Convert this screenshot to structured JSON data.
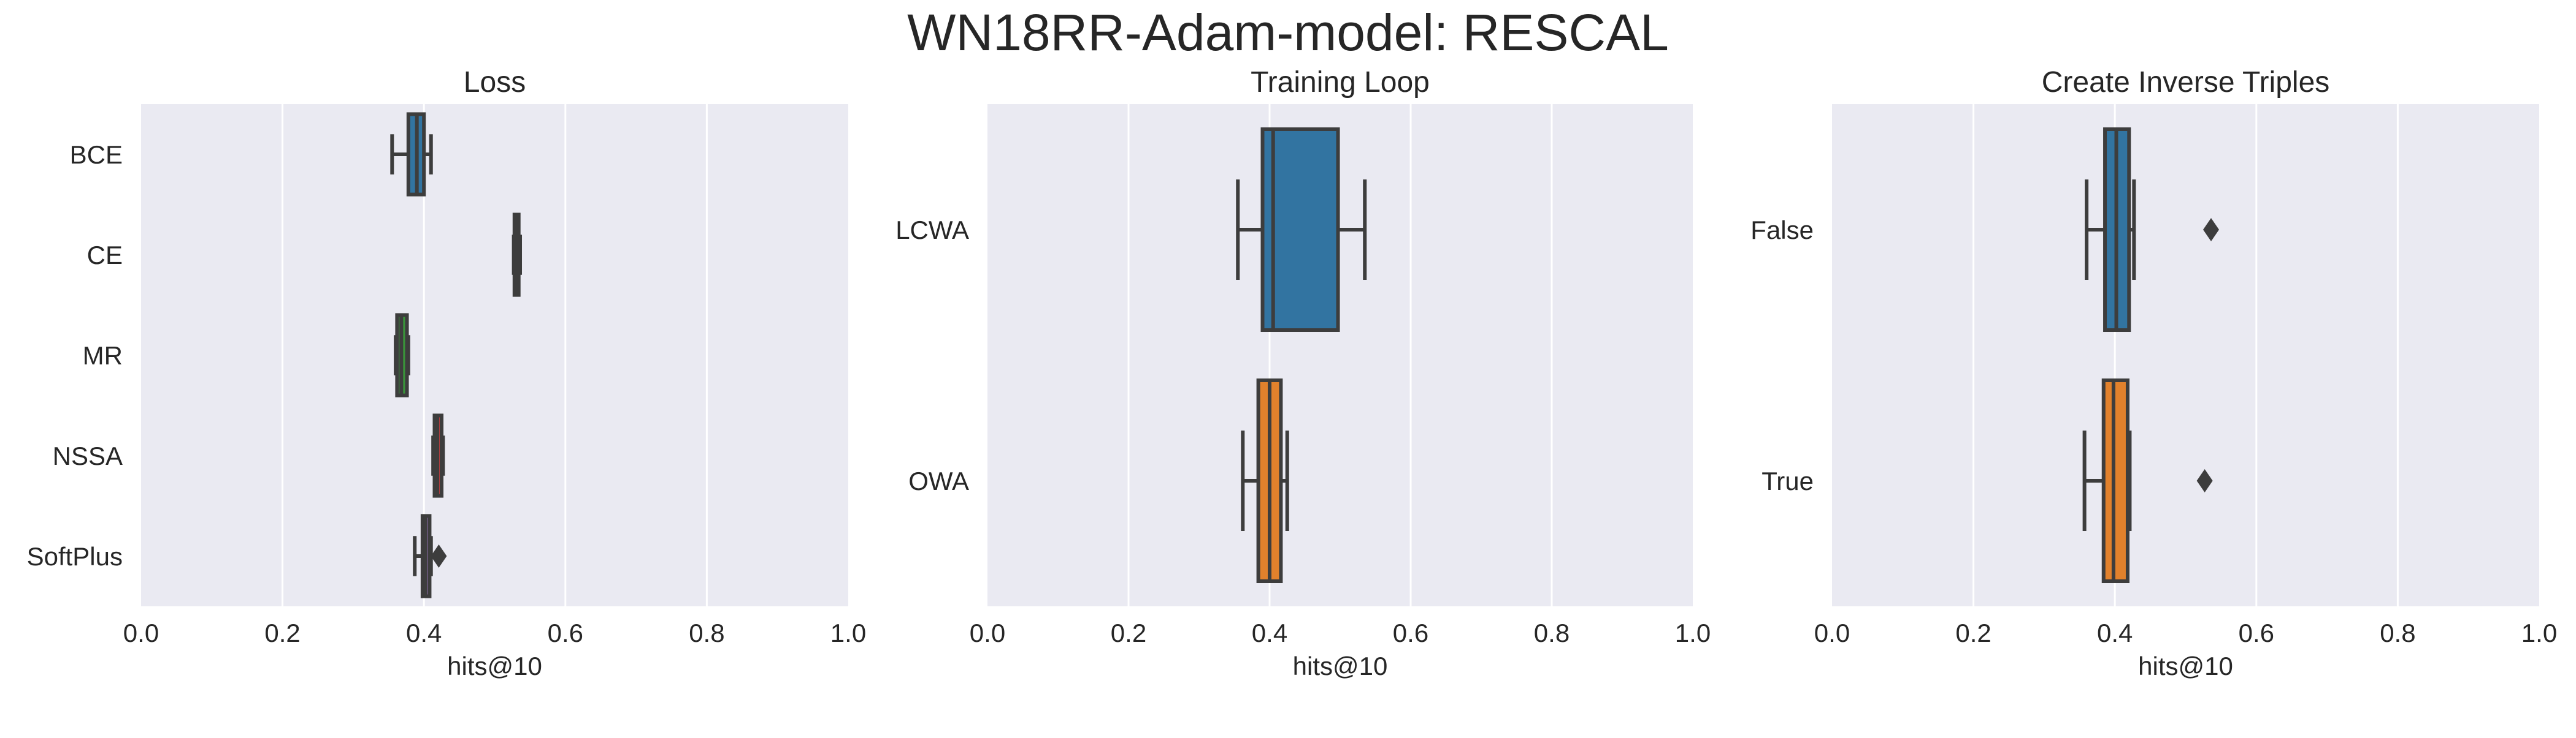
{
  "figure": {
    "title": "WN18RR-Adam-model: RESCAL"
  },
  "colors": {
    "plot_background": "#eaeaf2",
    "grid": "#ffffff",
    "box_edge": "#3d3d3d",
    "blue": "#3274a1",
    "orange": "#e1812c"
  },
  "chart_data": [
    {
      "type": "box",
      "title": "Loss",
      "xlabel": "hits@10",
      "ylabel": "",
      "xlim": [
        0,
        1
      ],
      "xticks": [
        "0.0",
        "0.2",
        "0.4",
        "0.6",
        "0.8",
        "1.0"
      ],
      "grid": true,
      "categories": [
        "BCE",
        "CE",
        "MR",
        "NSSA",
        "SoftPlus"
      ],
      "boxes": [
        {
          "category": "BCE",
          "color": "blue",
          "whisker_low": 0.355,
          "q1": 0.378,
          "median": 0.39,
          "q3": 0.4,
          "whisker_high": 0.41,
          "outliers": []
        },
        {
          "category": "CE",
          "color": "orange",
          "whisker_low": 0.527,
          "q1": 0.528,
          "median": 0.53,
          "q3": 0.534,
          "whisker_high": 0.536,
          "outliers": []
        },
        {
          "category": "MR",
          "color": "green",
          "whisker_low": 0.36,
          "q1": 0.362,
          "median": 0.368,
          "q3": 0.376,
          "whisker_high": 0.378,
          "outliers": []
        },
        {
          "category": "NSSA",
          "color": "red",
          "whisker_low": 0.413,
          "q1": 0.415,
          "median": 0.419,
          "q3": 0.425,
          "whisker_high": 0.427,
          "outliers": []
        },
        {
          "category": "SoftPlus",
          "color": "purple",
          "whisker_low": 0.387,
          "q1": 0.398,
          "median": 0.402,
          "q3": 0.408,
          "whisker_high": 0.41,
          "outliers": [
            0.421
          ]
        }
      ]
    },
    {
      "type": "box",
      "title": "Training Loop",
      "xlabel": "hits@10",
      "ylabel": "",
      "xlim": [
        0,
        1
      ],
      "xticks": [
        "0.0",
        "0.2",
        "0.4",
        "0.6",
        "0.8",
        "1.0"
      ],
      "grid": true,
      "categories": [
        "LCWA",
        "OWA"
      ],
      "boxes": [
        {
          "category": "LCWA",
          "color": "blue",
          "whisker_low": 0.355,
          "q1": 0.39,
          "median": 0.405,
          "q3": 0.497,
          "whisker_high": 0.535,
          "outliers": []
        },
        {
          "category": "OWA",
          "color": "orange",
          "whisker_low": 0.362,
          "q1": 0.384,
          "median": 0.4,
          "q3": 0.416,
          "whisker_high": 0.425,
          "outliers": []
        }
      ]
    },
    {
      "type": "box",
      "title": "Create Inverse Triples",
      "xlabel": "hits@10",
      "ylabel": "",
      "xlim": [
        0,
        1
      ],
      "xticks": [
        "0.0",
        "0.2",
        "0.4",
        "0.6",
        "0.8",
        "1.0"
      ],
      "grid": true,
      "categories": [
        "False",
        "True"
      ],
      "boxes": [
        {
          "category": "False",
          "color": "blue",
          "whisker_low": 0.36,
          "q1": 0.386,
          "median": 0.402,
          "q3": 0.42,
          "whisker_high": 0.427,
          "outliers": [
            0.536
          ]
        },
        {
          "category": "True",
          "color": "orange",
          "whisker_low": 0.357,
          "q1": 0.384,
          "median": 0.398,
          "q3": 0.418,
          "whisker_high": 0.421,
          "outliers": [
            0.527
          ]
        }
      ]
    }
  ]
}
